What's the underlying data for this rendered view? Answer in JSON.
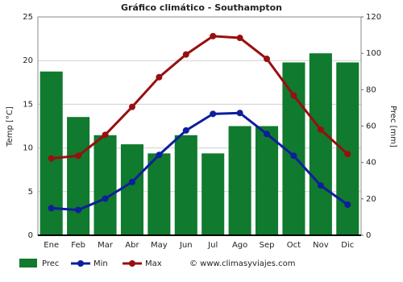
{
  "chart_data": {
    "type": "climate",
    "title": "Gráfico climático - Southampton",
    "y_label": "Temp [°C]",
    "y2_label": "Prec [mm]",
    "categories": [
      "Ene",
      "Feb",
      "Mar",
      "Abr",
      "May",
      "Jun",
      "Jul",
      "Ago",
      "Sep",
      "Oct",
      "Nov",
      "Dic"
    ],
    "series": [
      {
        "name": "Prec",
        "kind": "bar",
        "axis": "y2",
        "color": "#107a2e",
        "values": [
          90,
          65,
          55,
          50,
          45,
          55,
          45,
          60,
          60,
          95,
          100,
          95
        ]
      },
      {
        "name": "Min",
        "kind": "line",
        "axis": "y",
        "color": "#0d1f9a",
        "values": [
          3.1,
          2.9,
          4.2,
          6.1,
          9.2,
          12.0,
          13.9,
          14.0,
          11.6,
          9.1,
          5.7,
          3.5
        ]
      },
      {
        "name": "Max",
        "kind": "line",
        "axis": "y",
        "color": "#980f0f",
        "values": [
          8.8,
          9.1,
          11.5,
          14.7,
          18.1,
          20.7,
          22.8,
          22.6,
          20.2,
          16.0,
          12.1,
          9.3
        ]
      }
    ],
    "ylim": [
      0,
      25
    ],
    "yticks": [
      0,
      5,
      10,
      15,
      20,
      25
    ],
    "y2lim": [
      0,
      120
    ],
    "y2ticks": [
      0,
      20,
      40,
      60,
      80,
      100,
      120
    ],
    "grid": true,
    "credit": "© www.climasyviajes.com"
  }
}
